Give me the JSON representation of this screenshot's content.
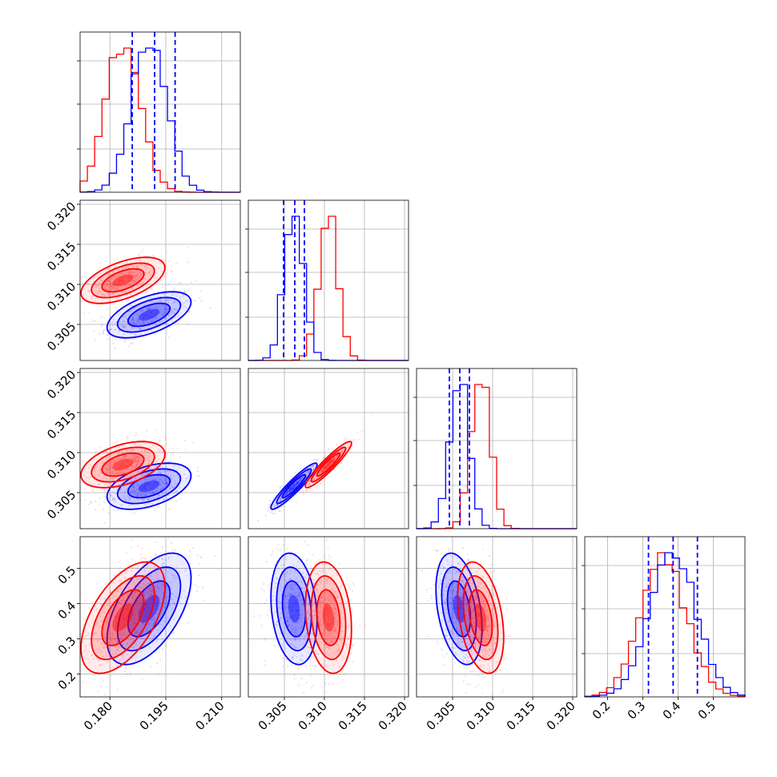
{
  "chart_data": {
    "type": "corner",
    "title": "",
    "grid": true,
    "colors": {
      "red": "#ff0000",
      "blue": "#0000ff",
      "quantile_line": "#0000ff"
    },
    "series": [
      {
        "color": "red",
        "means": [
          0.1835,
          0.3105,
          0.3085,
          0.36
        ],
        "stds": [
          0.0047,
          0.0012,
          0.0012,
          0.066
        ]
      },
      {
        "color": "blue",
        "means": [
          0.1905,
          0.3062,
          0.3058,
          0.385
        ],
        "stds": [
          0.0047,
          0.0012,
          0.0012,
          0.066
        ]
      }
    ],
    "quantiles": [
      [
        0.186,
        0.192,
        0.1975
      ],
      [
        0.3049,
        0.3063,
        0.3075
      ],
      [
        0.3046,
        0.3059,
        0.3071
      ],
      [
        0.316,
        0.386,
        0.455
      ]
    ],
    "ranges": [
      [
        0.172,
        0.215
      ],
      [
        0.3005,
        0.3205
      ],
      [
        0.3005,
        0.3205
      ],
      [
        0.135,
        0.59
      ]
    ],
    "ticks": [
      {
        "values": [
          0.18,
          0.195,
          0.21
        ],
        "labels": [
          "0.180",
          "0.195",
          "0.210"
        ]
      },
      {
        "values": [
          0.305,
          0.31,
          0.315,
          0.32
        ],
        "labels": [
          "0.305",
          "0.310",
          "0.315",
          "0.320"
        ]
      },
      {
        "values": [
          0.305,
          0.31,
          0.315,
          0.32
        ],
        "labels": [
          "0.305",
          "0.310",
          "0.315",
          "0.320"
        ]
      },
      {
        "values": [
          0.2,
          0.3,
          0.4,
          0.5
        ],
        "labels": [
          "0.2",
          "0.3",
          "0.4",
          "0.5"
        ]
      }
    ],
    "correlations": {
      "0-1": [
        0.55,
        0.55
      ],
      "0-2": [
        0.45,
        0.45
      ],
      "1-2": [
        0.93,
        0.93
      ],
      "0-3": [
        0.55,
        0.55
      ],
      "1-3": [
        -0.2,
        -0.2
      ],
      "2-3": [
        -0.35,
        -0.35
      ]
    }
  }
}
